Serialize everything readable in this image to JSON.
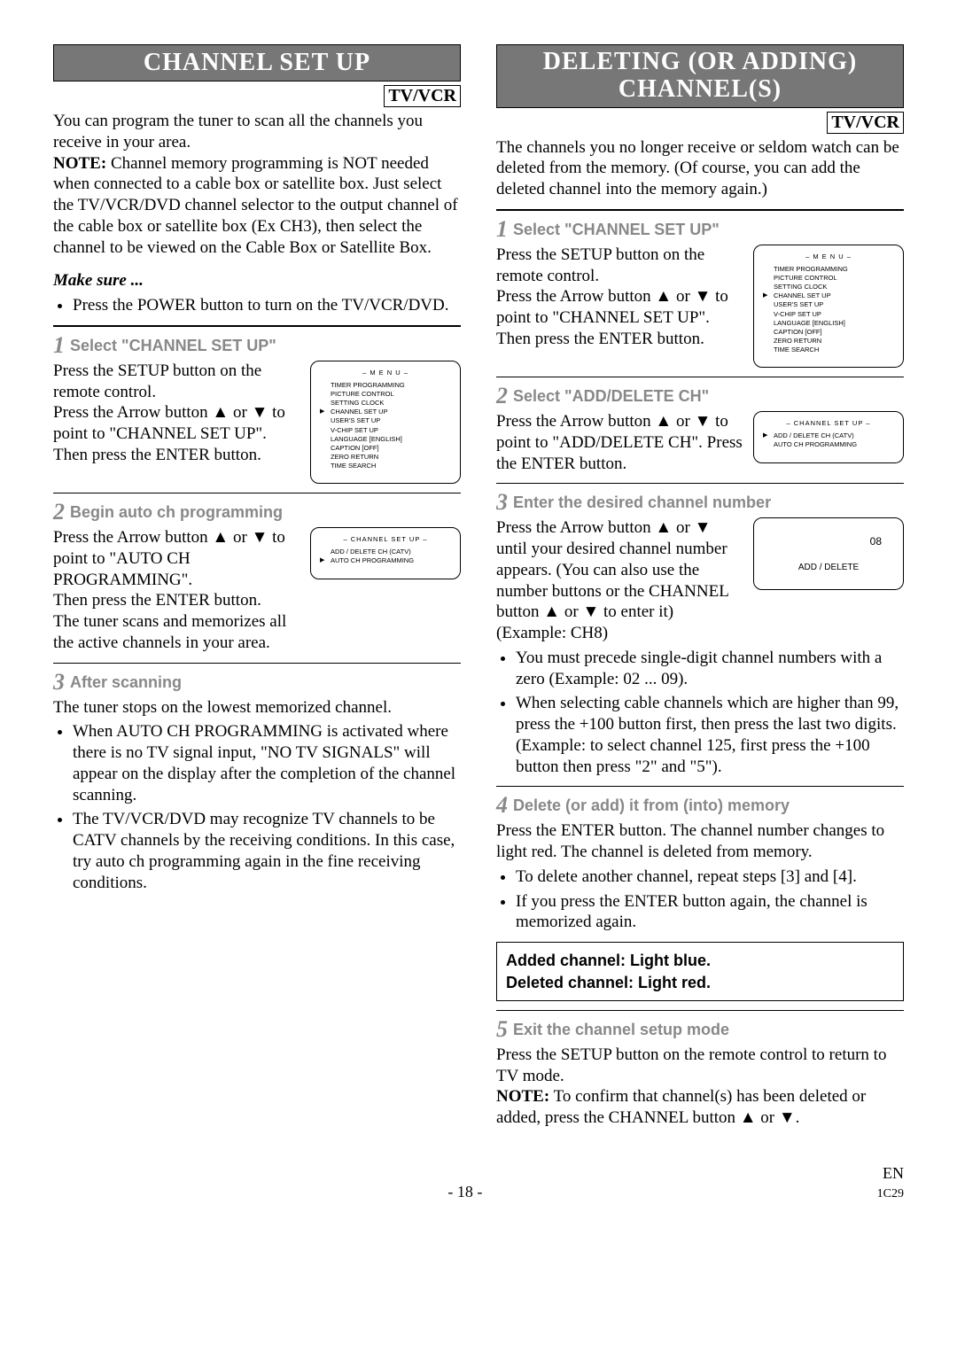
{
  "left": {
    "title": "CHANNEL SET UP",
    "tvvcr": "TV/VCR",
    "intro": "You can program the tuner to scan all the channels you receive in your area.",
    "note_label": "NOTE:",
    "note_text": " Channel memory programming is NOT needed when connected to a cable box or satellite box. Just select the TV/VCR/DVD channel selector to the output channel of the cable box or satellite box (Ex CH3), then select the channel to be viewed on the Cable Box or Satellite Box.",
    "makesure": "Make sure ...",
    "makesure_item": "Press the POWER button to turn on the TV/VCR/DVD.",
    "step1": {
      "head": "Select \"CHANNEL SET UP\"",
      "p1": "Press the SETUP button on the remote control.",
      "p2": "Press the Arrow button ▲ or ▼ to point to \"CHANNEL SET UP\". Then press the ENTER button."
    },
    "step2": {
      "head": "Begin auto ch programming",
      "p1": "Press the Arrow button ▲ or ▼ to point to \"AUTO CH PROGRAMMING\".",
      "p2": "Then press the ENTER button.",
      "p3": "The tuner scans and memorizes all the active channels in your area."
    },
    "step3": {
      "head": "After scanning",
      "p1": "The tuner stops on the lowest memorized channel.",
      "b1": "When AUTO CH PROGRAMMING is activated where there is no TV signal input, \"NO TV SIGNALS\" will appear on the display after the completion of the channel scanning.",
      "b2": "The TV/VCR/DVD may recognize TV channels to be CATV channels by the receiving conditions. In this case, try auto ch programming again in the fine receiving conditions."
    },
    "osd_menu": {
      "title": "– M E N U –",
      "items": [
        "TIMER PROGRAMMING",
        "PICTURE CONTROL",
        "SETTING CLOCK",
        "CHANNEL SET UP",
        "USER'S SET UP",
        "V-CHIP SET UP",
        "LANGUAGE  [ENGLISH]",
        "CAPTION   [OFF]",
        "ZERO RETURN",
        "TIME SEARCH"
      ],
      "sel_index": 3
    },
    "osd_chsetup": {
      "title": "– CHANNEL SET UP –",
      "items": [
        "ADD / DELETE CH (CATV)",
        "AUTO CH PROGRAMMING"
      ],
      "sel_index": 1
    }
  },
  "right": {
    "title": "DELETING (OR ADDING) CHANNEL(S)",
    "tvvcr": "TV/VCR",
    "intro": "The channels you no longer receive or seldom watch can be deleted from the memory. (Of course, you can add the deleted channel into the memory again.)",
    "step1": {
      "head": "Select \"CHANNEL SET UP\"",
      "p1": "Press the SETUP button on the remote control.",
      "p2": "Press the Arrow button ▲ or ▼ to point to \"CHANNEL SET UP\". Then press the ENTER button."
    },
    "step2": {
      "head": "Select \"ADD/DELETE CH\"",
      "p1": "Press the Arrow button ▲ or ▼ to point to \"ADD/DELETE CH\". Press the ENTER button."
    },
    "step3": {
      "head": "Enter the desired channel number",
      "p1": "Press the Arrow button ▲ or ▼ until your desired channel number appears. (You can also use the number buttons or the CHANNEL button ▲ or ▼ to enter it) (Example: CH8)",
      "b1": "You must precede single-digit channel numbers with a zero (Example: 02 ... 09).",
      "b2": "When selecting cable channels which are higher than 99, press the +100 button first, then press the last two digits. (Example: to select channel 125, first press the +100 button then press \"2\" and \"5\")."
    },
    "step4": {
      "head": "Delete (or add) it from (into) memory",
      "p1": "Press the ENTER button. The channel number changes to light red. The channel is deleted from memory.",
      "b1": "To delete another channel, repeat steps [3] and [4].",
      "b2": "If you press the ENTER button again, the channel is memorized again."
    },
    "notebox1": "Added channel: Light blue.",
    "notebox2": "Deleted channel: Light red.",
    "step5": {
      "head": "Exit the channel setup mode",
      "p1": "Press the SETUP button on the remote control to return to TV mode.",
      "note_label": "NOTE:",
      "note_text": " To confirm that channel(s) has been deleted or added, press the CHANNEL button ▲ or ▼."
    },
    "osd_menu": {
      "title": "– M E N U –",
      "items": [
        "TIMER PROGRAMMING",
        "PICTURE CONTROL",
        "SETTING CLOCK",
        "CHANNEL SET UP",
        "USER'S SET UP",
        "V-CHIP SET UP",
        "LANGUAGE  [ENGLISH]",
        "CAPTION   [OFF]",
        "ZERO RETURN",
        "TIME SEARCH"
      ],
      "sel_index": 3
    },
    "osd_chsetup": {
      "title": "– CHANNEL SET UP –",
      "items": [
        "ADD / DELETE CH (CATV)",
        "AUTO CH PROGRAMMING"
      ],
      "sel_index": 0
    },
    "osd_adddel": {
      "num": "08",
      "label": "ADD / DELETE"
    }
  },
  "footer": {
    "page": "- 18 -",
    "en": "EN",
    "code": "1C29"
  }
}
